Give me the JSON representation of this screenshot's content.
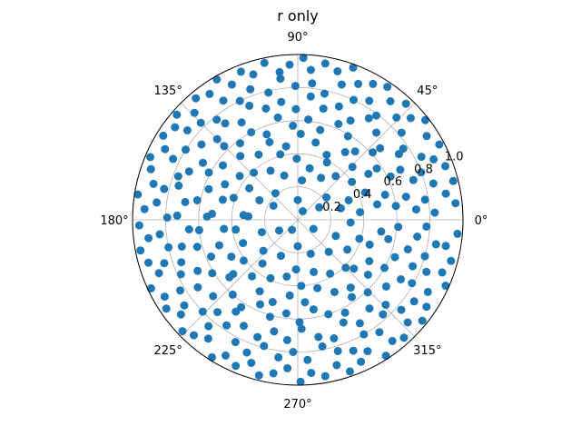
{
  "chart_data": {
    "type": "scatter",
    "projection": "polar",
    "title": "r only",
    "color": "#1f77b4",
    "grid": true,
    "rlim": [
      0,
      1.0
    ],
    "r_ticks": [
      {
        "value": 0.2,
        "label": "0.2"
      },
      {
        "value": 0.4,
        "label": "0.4"
      },
      {
        "value": 0.6,
        "label": "0.6"
      },
      {
        "value": 0.8,
        "label": "0.8"
      },
      {
        "value": 1.0,
        "label": "1.0"
      }
    ],
    "theta_ticks": [
      {
        "value": 0,
        "label": "0°"
      },
      {
        "value": 45,
        "label": "45°"
      },
      {
        "value": 90,
        "label": "90°"
      },
      {
        "value": 135,
        "label": "135°"
      },
      {
        "value": 180,
        "label": "180°"
      },
      {
        "value": 225,
        "label": "225°"
      },
      {
        "value": 270,
        "label": "270°"
      },
      {
        "value": 315,
        "label": "315°"
      }
    ],
    "points": [
      [
        6,
        0.96
      ],
      [
        10,
        0.91
      ],
      [
        14,
        0.97
      ],
      [
        20,
        0.95
      ],
      [
        24,
        0.9
      ],
      [
        28,
        0.97
      ],
      [
        33,
        0.93
      ],
      [
        38,
        0.98
      ],
      [
        42,
        0.92
      ],
      [
        47,
        0.96
      ],
      [
        52,
        0.91
      ],
      [
        56,
        0.97
      ],
      [
        61,
        0.94
      ],
      [
        66,
        0.9
      ],
      [
        70,
        0.98
      ],
      [
        75,
        0.93
      ],
      [
        80,
        0.96
      ],
      [
        85,
        0.91
      ],
      [
        88,
        0.98
      ],
      [
        93,
        0.94
      ],
      [
        97,
        0.9
      ],
      [
        102,
        0.97
      ],
      [
        107,
        0.92
      ],
      [
        111,
        0.96
      ],
      [
        116,
        0.91
      ],
      [
        120,
        0.98
      ],
      [
        125,
        0.93
      ],
      [
        130,
        0.96
      ],
      [
        134,
        0.9
      ],
      [
        139,
        0.97
      ],
      [
        143,
        0.93
      ],
      [
        148,
        0.96
      ],
      [
        152,
        0.91
      ],
      [
        157,
        0.97
      ],
      [
        161,
        0.94
      ],
      [
        166,
        0.9
      ],
      [
        171,
        0.98
      ],
      [
        176,
        0.93
      ],
      [
        182,
        0.96
      ],
      [
        187,
        0.91
      ],
      [
        191,
        0.97
      ],
      [
        196,
        0.94
      ],
      [
        201,
        0.9
      ],
      [
        205,
        0.98
      ],
      [
        210,
        0.93
      ],
      [
        214,
        0.96
      ],
      [
        219,
        0.91
      ],
      [
        224,
        0.97
      ],
      [
        228,
        0.94
      ],
      [
        233,
        0.9
      ],
      [
        238,
        0.98
      ],
      [
        242,
        0.93
      ],
      [
        247,
        0.96
      ],
      [
        252,
        0.91
      ],
      [
        256,
        0.97
      ],
      [
        261,
        0.94
      ],
      [
        266,
        0.9
      ],
      [
        271,
        0.98
      ],
      [
        275,
        0.93
      ],
      [
        280,
        0.96
      ],
      [
        285,
        0.91
      ],
      [
        289,
        0.97
      ],
      [
        294,
        0.94
      ],
      [
        298,
        0.9
      ],
      [
        303,
        0.98
      ],
      [
        308,
        0.93
      ],
      [
        312,
        0.96
      ],
      [
        317,
        0.91
      ],
      [
        321,
        0.97
      ],
      [
        326,
        0.94
      ],
      [
        331,
        0.9
      ],
      [
        336,
        0.98
      ],
      [
        340,
        0.93
      ],
      [
        345,
        0.96
      ],
      [
        350,
        0.91
      ],
      [
        355,
        0.97
      ],
      [
        3,
        0.83
      ],
      [
        9,
        0.78
      ],
      [
        15,
        0.85
      ],
      [
        21,
        0.8
      ],
      [
        27,
        0.84
      ],
      [
        34,
        0.77
      ],
      [
        40,
        0.82
      ],
      [
        46,
        0.86
      ],
      [
        53,
        0.79
      ],
      [
        59,
        0.84
      ],
      [
        65,
        0.8
      ],
      [
        72,
        0.86
      ],
      [
        78,
        0.78
      ],
      [
        84,
        0.83
      ],
      [
        91,
        0.81
      ],
      [
        97,
        0.86
      ],
      [
        103,
        0.79
      ],
      [
        110,
        0.84
      ],
      [
        116,
        0.8
      ],
      [
        122,
        0.85
      ],
      [
        129,
        0.78
      ],
      [
        135,
        0.83
      ],
      [
        141,
        0.86
      ],
      [
        148,
        0.8
      ],
      [
        154,
        0.84
      ],
      [
        160,
        0.77
      ],
      [
        167,
        0.83
      ],
      [
        173,
        0.86
      ],
      [
        179,
        0.79
      ],
      [
        186,
        0.84
      ],
      [
        192,
        0.8
      ],
      [
        198,
        0.85
      ],
      [
        205,
        0.78
      ],
      [
        211,
        0.83
      ],
      [
        217,
        0.86
      ],
      [
        224,
        0.8
      ],
      [
        230,
        0.84
      ],
      [
        236,
        0.77
      ],
      [
        243,
        0.83
      ],
      [
        249,
        0.86
      ],
      [
        255,
        0.79
      ],
      [
        262,
        0.84
      ],
      [
        268,
        0.8
      ],
      [
        274,
        0.85
      ],
      [
        281,
        0.78
      ],
      [
        287,
        0.83
      ],
      [
        293,
        0.86
      ],
      [
        300,
        0.8
      ],
      [
        306,
        0.84
      ],
      [
        312,
        0.77
      ],
      [
        319,
        0.83
      ],
      [
        325,
        0.86
      ],
      [
        331,
        0.79
      ],
      [
        338,
        0.84
      ],
      [
        344,
        0.8
      ],
      [
        350,
        0.85
      ],
      [
        357,
        0.78
      ],
      [
        5,
        0.72
      ],
      [
        12,
        0.67
      ],
      [
        19,
        0.74
      ],
      [
        26,
        0.69
      ],
      [
        33,
        0.73
      ],
      [
        41,
        0.66
      ],
      [
        48,
        0.71
      ],
      [
        55,
        0.75
      ],
      [
        62,
        0.68
      ],
      [
        70,
        0.73
      ],
      [
        77,
        0.69
      ],
      [
        84,
        0.75
      ],
      [
        91,
        0.67
      ],
      [
        98,
        0.72
      ],
      [
        106,
        0.7
      ],
      [
        113,
        0.75
      ],
      [
        120,
        0.68
      ],
      [
        127,
        0.73
      ],
      [
        135,
        0.69
      ],
      [
        142,
        0.74
      ],
      [
        149,
        0.67
      ],
      [
        156,
        0.72
      ],
      [
        164,
        0.75
      ],
      [
        171,
        0.69
      ],
      [
        178,
        0.73
      ],
      [
        185,
        0.66
      ],
      [
        193,
        0.72
      ],
      [
        200,
        0.75
      ],
      [
        207,
        0.68
      ],
      [
        214,
        0.73
      ],
      [
        222,
        0.69
      ],
      [
        229,
        0.74
      ],
      [
        236,
        0.67
      ],
      [
        243,
        0.72
      ],
      [
        251,
        0.75
      ],
      [
        258,
        0.69
      ],
      [
        265,
        0.73
      ],
      [
        272,
        0.66
      ],
      [
        280,
        0.72
      ],
      [
        287,
        0.75
      ],
      [
        294,
        0.68
      ],
      [
        301,
        0.73
      ],
      [
        309,
        0.69
      ],
      [
        316,
        0.74
      ],
      [
        323,
        0.67
      ],
      [
        330,
        0.72
      ],
      [
        338,
        0.75
      ],
      [
        345,
        0.69
      ],
      [
        352,
        0.73
      ],
      [
        8,
        0.6
      ],
      [
        16,
        0.55
      ],
      [
        25,
        0.62
      ],
      [
        33,
        0.57
      ],
      [
        42,
        0.61
      ],
      [
        50,
        0.54
      ],
      [
        59,
        0.59
      ],
      [
        67,
        0.63
      ],
      [
        76,
        0.56
      ],
      [
        84,
        0.61
      ],
      [
        93,
        0.57
      ],
      [
        101,
        0.63
      ],
      [
        110,
        0.55
      ],
      [
        118,
        0.6
      ],
      [
        127,
        0.58
      ],
      [
        135,
        0.63
      ],
      [
        144,
        0.56
      ],
      [
        152,
        0.61
      ],
      [
        161,
        0.57
      ],
      [
        169,
        0.62
      ],
      [
        178,
        0.55
      ],
      [
        186,
        0.6
      ],
      [
        195,
        0.63
      ],
      [
        203,
        0.57
      ],
      [
        212,
        0.61
      ],
      [
        220,
        0.54
      ],
      [
        229,
        0.6
      ],
      [
        237,
        0.63
      ],
      [
        246,
        0.56
      ],
      [
        254,
        0.61
      ],
      [
        263,
        0.57
      ],
      [
        271,
        0.62
      ],
      [
        280,
        0.55
      ],
      [
        288,
        0.6
      ],
      [
        297,
        0.63
      ],
      [
        305,
        0.57
      ],
      [
        314,
        0.61
      ],
      [
        322,
        0.54
      ],
      [
        331,
        0.6
      ],
      [
        339,
        0.63
      ],
      [
        348,
        0.56
      ],
      [
        356,
        0.61
      ],
      [
        11,
        0.49
      ],
      [
        22,
        0.44
      ],
      [
        33,
        0.51
      ],
      [
        44,
        0.46
      ],
      [
        55,
        0.5
      ],
      [
        66,
        0.43
      ],
      [
        77,
        0.48
      ],
      [
        88,
        0.52
      ],
      [
        99,
        0.45
      ],
      [
        110,
        0.5
      ],
      [
        121,
        0.46
      ],
      [
        132,
        0.52
      ],
      [
        143,
        0.44
      ],
      [
        154,
        0.49
      ],
      [
        165,
        0.47
      ],
      [
        176,
        0.52
      ],
      [
        187,
        0.45
      ],
      [
        198,
        0.5
      ],
      [
        209,
        0.46
      ],
      [
        220,
        0.51
      ],
      [
        231,
        0.44
      ],
      [
        242,
        0.49
      ],
      [
        253,
        0.52
      ],
      [
        264,
        0.46
      ],
      [
        275,
        0.5
      ],
      [
        286,
        0.43
      ],
      [
        297,
        0.49
      ],
      [
        308,
        0.52
      ],
      [
        319,
        0.45
      ],
      [
        330,
        0.5
      ],
      [
        341,
        0.46
      ],
      [
        352,
        0.51
      ],
      [
        7,
        0.38
      ],
      [
        21,
        0.33
      ],
      [
        35,
        0.4
      ],
      [
        49,
        0.35
      ],
      [
        63,
        0.39
      ],
      [
        77,
        0.32
      ],
      [
        91,
        0.37
      ],
      [
        105,
        0.41
      ],
      [
        119,
        0.34
      ],
      [
        133,
        0.39
      ],
      [
        147,
        0.35
      ],
      [
        161,
        0.41
      ],
      [
        175,
        0.33
      ],
      [
        189,
        0.38
      ],
      [
        203,
        0.36
      ],
      [
        217,
        0.41
      ],
      [
        231,
        0.34
      ],
      [
        245,
        0.39
      ],
      [
        259,
        0.35
      ],
      [
        273,
        0.4
      ],
      [
        287,
        0.33
      ],
      [
        301,
        0.38
      ],
      [
        315,
        0.41
      ],
      [
        329,
        0.35
      ],
      [
        343,
        0.39
      ],
      [
        357,
        0.32
      ],
      [
        15,
        0.27
      ],
      [
        38,
        0.22
      ],
      [
        61,
        0.29
      ],
      [
        84,
        0.24
      ],
      [
        107,
        0.28
      ],
      [
        130,
        0.21
      ],
      [
        153,
        0.26
      ],
      [
        176,
        0.3
      ],
      [
        199,
        0.23
      ],
      [
        222,
        0.28
      ],
      [
        245,
        0.24
      ],
      [
        268,
        0.3
      ],
      [
        291,
        0.22
      ],
      [
        314,
        0.27
      ],
      [
        337,
        0.25
      ],
      [
        30,
        0.15
      ],
      [
        90,
        0.12
      ],
      [
        150,
        0.17
      ],
      [
        210,
        0.13
      ],
      [
        270,
        0.16
      ],
      [
        330,
        0.11
      ],
      [
        60,
        0.06
      ],
      [
        240,
        0.07
      ]
    ]
  }
}
